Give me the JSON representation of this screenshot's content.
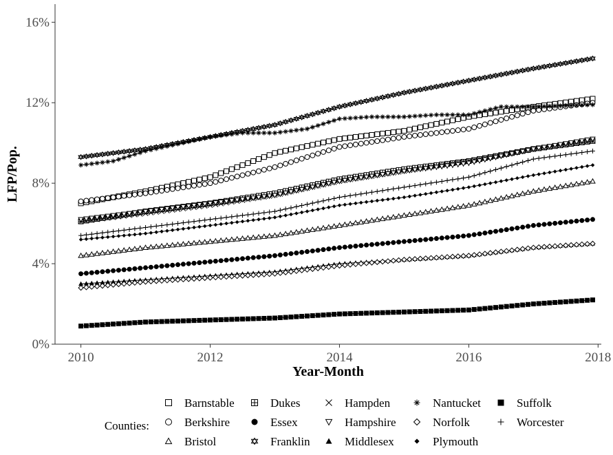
{
  "chart_data": {
    "type": "line",
    "title": "",
    "xlabel": "Year-Month",
    "ylabel": "LFP/Pop.",
    "xlim": [
      2009.6,
      2018.05
    ],
    "ylim": [
      0,
      16.9
    ],
    "x_ticks": [
      2010,
      2012,
      2014,
      2016,
      2018
    ],
    "x_tick_labels": [
      "2010",
      "2012",
      "2014",
      "2016",
      "2018"
    ],
    "y_ticks": [
      0,
      4,
      8,
      12,
      16
    ],
    "y_tick_labels": [
      "0%",
      "4%",
      "8%",
      "12%",
      "16%"
    ],
    "grid": false,
    "legend": {
      "title": "Counties:",
      "placement": "bottom"
    },
    "series": [
      {
        "name": "Barnstable",
        "marker": "square-open",
        "x": [
          2010,
          2011,
          2012,
          2013,
          2014,
          2015,
          2016,
          2017,
          2017.92
        ],
        "values": [
          7.0,
          7.6,
          8.3,
          9.5,
          10.2,
          10.6,
          11.3,
          11.8,
          12.2
        ]
      },
      {
        "name": "Berkshire",
        "marker": "circle-open",
        "x": [
          2010,
          2011,
          2012,
          2013,
          2014,
          2015,
          2016,
          2017,
          2017.92
        ],
        "values": [
          7.1,
          7.5,
          8.0,
          8.8,
          9.8,
          10.3,
          10.7,
          11.6,
          12.0
        ]
      },
      {
        "name": "Bristol",
        "marker": "triangle-open",
        "x": [
          2010,
          2011,
          2012,
          2013,
          2014,
          2015,
          2016,
          2017,
          2017.92
        ],
        "values": [
          4.4,
          4.8,
          5.1,
          5.4,
          5.9,
          6.4,
          6.9,
          7.6,
          8.1
        ]
      },
      {
        "name": "Dukes",
        "marker": "square-plus",
        "x": [
          2010,
          2011,
          2012,
          2013,
          2014,
          2015,
          2016,
          2017,
          2017.92
        ],
        "values": [
          6.1,
          6.6,
          7.0,
          7.5,
          8.2,
          8.7,
          9.1,
          9.7,
          10.1
        ]
      },
      {
        "name": "Essex",
        "marker": "circle-filled",
        "x": [
          2010,
          2011,
          2012,
          2013,
          2014,
          2015,
          2016,
          2017,
          2017.92
        ],
        "values": [
          3.5,
          3.8,
          4.1,
          4.4,
          4.8,
          5.1,
          5.4,
          5.9,
          6.2
        ]
      },
      {
        "name": "Franklin",
        "marker": "star-david",
        "x": [
          2010,
          2011,
          2012,
          2013,
          2014,
          2015,
          2016,
          2017,
          2017.92
        ],
        "values": [
          9.3,
          9.7,
          10.3,
          10.9,
          11.8,
          12.5,
          13.1,
          13.7,
          14.2
        ]
      },
      {
        "name": "Hampden",
        "marker": "x",
        "x": [
          2010,
          2011,
          2012,
          2013,
          2014,
          2015,
          2016,
          2017,
          2017.92
        ],
        "values": [
          6.1,
          6.5,
          6.9,
          7.4,
          8.1,
          8.6,
          9.1,
          9.7,
          10.1
        ]
      },
      {
        "name": "Hampshire",
        "marker": "triangle-down-open",
        "x": [
          2010,
          2011,
          2012,
          2013,
          2014,
          2015,
          2016,
          2017,
          2017.92
        ],
        "values": [
          6.2,
          6.6,
          7.0,
          7.4,
          8.1,
          8.6,
          9.0,
          9.7,
          10.2
        ]
      },
      {
        "name": "Middlesex",
        "marker": "triangle-filled",
        "x": [
          2010,
          2011,
          2012,
          2013,
          2014,
          2015,
          2016,
          2017,
          2017.92
        ],
        "values": [
          3.0,
          3.2,
          3.4,
          3.6,
          4.0,
          4.2,
          4.4,
          4.8,
          5.0
        ]
      },
      {
        "name": "Nantucket",
        "marker": "asterisk",
        "x": [
          2010,
          2010.5,
          2011,
          2012,
          2012.5,
          2013,
          2013.5,
          2014,
          2014.5,
          2015,
          2015.5,
          2016,
          2016.5,
          2017,
          2017.92
        ],
        "values": [
          8.9,
          9.1,
          9.6,
          10.3,
          10.5,
          10.5,
          10.7,
          11.2,
          11.3,
          11.3,
          11.4,
          11.4,
          11.8,
          11.8,
          11.9
        ]
      },
      {
        "name": "Norfolk",
        "marker": "diamond-open",
        "x": [
          2010,
          2011,
          2012,
          2013,
          2014,
          2015,
          2016,
          2017,
          2017.92
        ],
        "values": [
          2.8,
          3.1,
          3.3,
          3.5,
          3.9,
          4.2,
          4.4,
          4.8,
          5.0
        ]
      },
      {
        "name": "Plymouth",
        "marker": "diamond-filled",
        "x": [
          2010,
          2011,
          2012,
          2013,
          2014,
          2015,
          2016,
          2017,
          2017.92
        ],
        "values": [
          5.2,
          5.5,
          5.9,
          6.3,
          6.9,
          7.3,
          7.8,
          8.4,
          8.9
        ]
      },
      {
        "name": "Suffolk",
        "marker": "square-filled",
        "x": [
          2010,
          2011,
          2012,
          2013,
          2014,
          2015,
          2016,
          2017,
          2017.92
        ],
        "values": [
          0.9,
          1.1,
          1.2,
          1.3,
          1.5,
          1.6,
          1.7,
          2.0,
          2.2
        ]
      },
      {
        "name": "Worcester",
        "marker": "plus",
        "x": [
          2010,
          2011,
          2012,
          2013,
          2014,
          2015,
          2016,
          2017,
          2017.92
        ],
        "values": [
          5.4,
          5.8,
          6.2,
          6.6,
          7.3,
          7.8,
          8.3,
          9.2,
          9.6
        ]
      }
    ]
  }
}
